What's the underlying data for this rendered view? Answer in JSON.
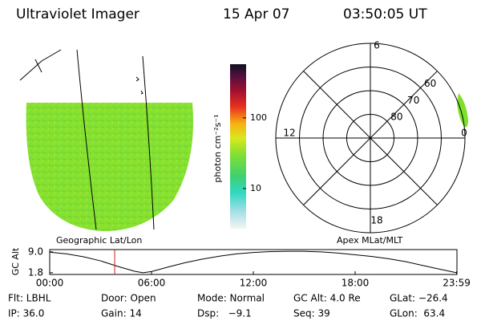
{
  "header": {
    "title": "Ultraviolet Imager",
    "date": "15 Apr 07",
    "time": "03:50:05 UT"
  },
  "image_panel": {
    "caption": "Geographic Lat/Lon"
  },
  "colorbar": {
    "label": "photon cm⁻²s⁻¹",
    "log": true,
    "lim": [
      2.7,
      575
    ],
    "ticks": [
      10,
      100
    ]
  },
  "polar_panel": {
    "caption": "Apex MLat/MLT",
    "latlim": [
      90,
      50
    ],
    "lat_ticks": [
      60,
      70,
      80
    ],
    "mlt_ticks": [
      {
        "value": 12,
        "label": "12"
      },
      {
        "value": 18,
        "label": "18"
      },
      {
        "value": 6,
        "label": "6"
      },
      {
        "value": 0,
        "label": "0"
      }
    ]
  },
  "altitude_plot": {
    "ylabel": "GC Alt",
    "ylim": [
      1.2,
      9.8
    ],
    "yticks": [
      {
        "value": 9,
        "label": "9.0"
      },
      1.8
    ],
    "xlim": [
      0,
      24
    ],
    "xticks": [
      {
        "value": 0,
        "label": "00:00"
      },
      {
        "value": 6,
        "label": "06:00"
      },
      {
        "value": 12,
        "label": "12:00"
      },
      {
        "value": 18,
        "label": "18:00"
      },
      {
        "value": 23.98,
        "label": "23:59"
      }
    ],
    "x": [
      0,
      1,
      2,
      3,
      4,
      5,
      5.5,
      6,
      7,
      8,
      9,
      10,
      11,
      12,
      13,
      14,
      15,
      16,
      17,
      18,
      19,
      20,
      21,
      22,
      23,
      23.98
    ],
    "values": [
      8.9,
      8.3,
      7.3,
      5.9,
      4.0,
      2.3,
      1.8,
      2.2,
      3.8,
      5.3,
      6.5,
      7.5,
      8.3,
      8.8,
      9.1,
      9.2,
      9.2,
      9.0,
      8.6,
      8.0,
      7.4,
      6.6,
      5.6,
      4.3,
      3.0,
      1.8
    ],
    "current_time": 3.83
  },
  "status": {
    "rows": [
      [
        "Flt: LBHL",
        "Door: Open",
        "Mode: Normal",
        "GC Alt: 4.0 Re",
        "GLat: −26.4"
      ],
      [
        "IP: 36.0",
        "Gain: 14",
        "Dsp:   −9.1",
        "Seq: 39",
        "GLon:  63.4"
      ]
    ]
  }
}
